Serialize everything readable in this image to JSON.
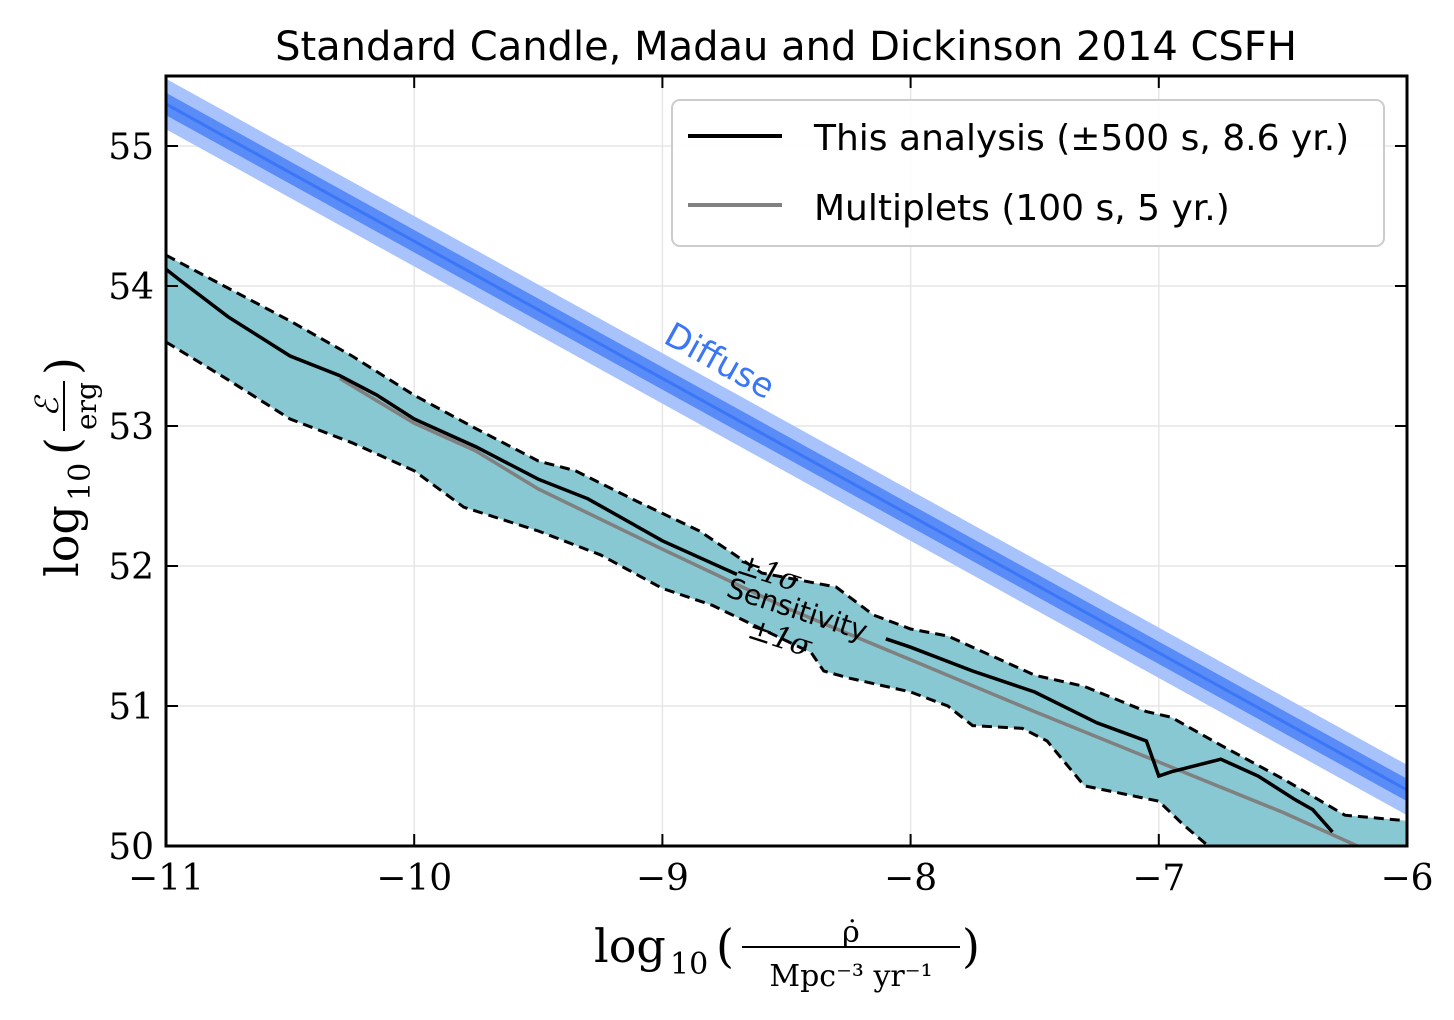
{
  "chart_data": {
    "type": "line",
    "title": "Standard Candle, Madau and Dickinson 2014 CSFH",
    "xlabel": "log10 ( ρ̇ / Mpc^-3 yr^-1 )",
    "ylabel": "log10 ( ℰ / erg )",
    "xlim": [
      -11,
      -6
    ],
    "ylim": [
      50,
      55.5
    ],
    "x_ticks": [
      "−11",
      "−10",
      "−9",
      "−8",
      "−7",
      "−6"
    ],
    "y_ticks": [
      "50",
      "51",
      "52",
      "53",
      "54",
      "55"
    ],
    "grid": true,
    "legend_position": "top-right",
    "legend": [
      "This analysis (±500 s, 8.6 yr.)",
      "Multiplets (100 s, 5 yr.)"
    ],
    "annotations": {
      "diffuse": "Diffuse",
      "sensitivity": "Sensitivity",
      "plus_sigma": "±1σ",
      "minus_sigma": "±1σ"
    },
    "colors": {
      "diffuse_band_outer": "#a8c3fc",
      "diffuse_band_inner": "#5a8cf8",
      "diffuse_line": "#3a76f5",
      "sensitivity_band": "#88c8d2",
      "this_analysis": "#000000",
      "multiplets": "#808080",
      "diffuse_text": "#3a76f5"
    },
    "series": [
      {
        "name": "This analysis (±500 s, 8.6 yr.)",
        "x": [
          -11.0,
          -10.95,
          -10.75,
          -10.5,
          -10.3,
          -10.15,
          -10.0,
          -9.75,
          -9.5,
          -9.3,
          -9.0,
          -8.75,
          -8.7
        ],
        "y": [
          54.12,
          54.05,
          53.78,
          53.5,
          53.36,
          53.22,
          53.05,
          52.85,
          52.62,
          52.48,
          52.18,
          51.98,
          51.94
        ],
        "segment2_x": [
          -8.1,
          -8.0,
          -7.75,
          -7.5,
          -7.25,
          -7.05,
          -7.0,
          -6.95,
          -6.75,
          -6.6,
          -6.45,
          -6.38,
          -6.3
        ],
        "segment2_y": [
          51.48,
          51.42,
          51.25,
          51.1,
          50.88,
          50.75,
          50.5,
          50.53,
          50.62,
          50.5,
          50.33,
          50.26,
          50.1
        ]
      },
      {
        "name": "Multiplets (100 s, 5 yr.)",
        "x": [
          -10.3,
          -10.0,
          -9.75,
          -9.5,
          -9.0,
          -8.5,
          -8.0,
          -7.5,
          -7.0,
          -6.5,
          -6.2,
          -6.0
        ],
        "y": [
          53.34,
          53.02,
          52.82,
          52.55,
          52.12,
          51.7,
          51.33,
          50.96,
          50.6,
          50.24,
          50.0,
          49.92
        ]
      },
      {
        "name": "Sensitivity +1σ",
        "x": [
          -11.0,
          -10.5,
          -10.25,
          -10.0,
          -9.75,
          -9.5,
          -9.35,
          -9.1,
          -8.85,
          -8.6,
          -8.3,
          -8.15,
          -8.0,
          -7.85,
          -7.75,
          -7.5,
          -7.3,
          -7.05,
          -6.95,
          -6.75,
          -6.5,
          -6.25,
          -6.0
        ],
        "y": [
          54.22,
          53.75,
          53.5,
          53.22,
          52.98,
          52.75,
          52.68,
          52.46,
          52.25,
          51.95,
          51.85,
          51.65,
          51.55,
          51.5,
          51.42,
          51.22,
          51.14,
          50.96,
          50.92,
          50.72,
          50.48,
          50.22,
          50.18
        ]
      },
      {
        "name": "Sensitivity -1σ",
        "x": [
          -11.0,
          -10.75,
          -10.5,
          -10.25,
          -10.0,
          -9.8,
          -9.5,
          -9.25,
          -9.0,
          -8.8,
          -8.6,
          -8.4,
          -8.35,
          -8.25,
          -8.0,
          -7.85,
          -7.75,
          -7.55,
          -7.45,
          -7.3,
          -7.0,
          -6.9,
          -6.8
        ],
        "y": [
          53.6,
          53.33,
          53.05,
          52.88,
          52.68,
          52.42,
          52.25,
          52.08,
          51.84,
          51.72,
          51.55,
          51.38,
          51.25,
          51.2,
          51.1,
          51.0,
          50.86,
          50.84,
          50.75,
          50.43,
          50.32,
          50.15,
          50.0
        ]
      },
      {
        "name": "Diffuse",
        "x": [
          -11.0,
          -6.0
        ],
        "y": [
          55.3,
          50.4
        ],
        "band_inner_halfwidth": 0.08,
        "band_outer_halfwidth": 0.18
      }
    ]
  }
}
